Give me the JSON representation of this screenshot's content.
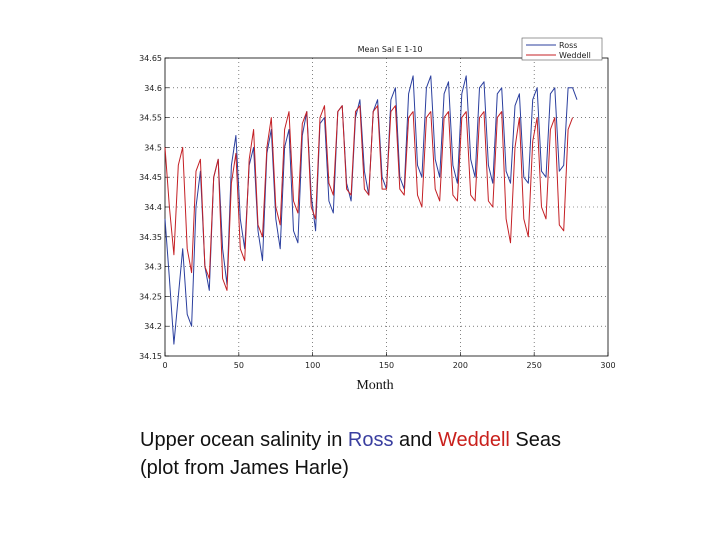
{
  "chart_data": {
    "type": "line",
    "title": "Mean Sal E 1-10",
    "xlabel": "Month",
    "ylabel": "",
    "xlim": [
      0,
      300
    ],
    "ylim": [
      34.15,
      34.65
    ],
    "x_ticks": [
      "0",
      "50",
      "100",
      "150",
      "200",
      "250",
      "300"
    ],
    "y_ticks": [
      "34.15",
      "34.2",
      "34.25",
      "34.3",
      "34.35",
      "34.4",
      "34.45",
      "34.5",
      "34.55",
      "34.6",
      "34.65"
    ],
    "grid": true,
    "legend_position": "top-right",
    "series": [
      {
        "name": "Ross",
        "color": "#2b3f9e",
        "x": [
          0,
          3,
          6,
          9,
          12,
          15,
          18,
          21,
          24,
          27,
          30,
          33,
          36,
          39,
          42,
          45,
          48,
          51,
          54,
          57,
          60,
          63,
          66,
          69,
          72,
          75,
          78,
          81,
          84,
          87,
          90,
          93,
          96,
          99,
          102,
          105,
          108,
          111,
          114,
          117,
          120,
          123,
          126,
          129,
          132,
          135,
          138,
          141,
          144,
          147,
          150,
          153,
          156,
          159,
          162,
          165,
          168,
          171,
          174,
          177,
          180,
          183,
          186,
          189,
          192,
          195,
          198,
          201,
          204,
          207,
          210,
          213,
          216,
          219,
          222,
          225,
          228,
          231,
          234,
          237,
          240,
          243,
          246,
          249,
          252,
          255,
          258,
          261,
          264,
          267,
          270,
          273,
          276,
          279
        ],
        "values": [
          34.38,
          34.28,
          34.17,
          34.25,
          34.33,
          34.22,
          34.2,
          34.4,
          34.46,
          34.3,
          34.26,
          34.45,
          34.48,
          34.33,
          34.27,
          34.47,
          34.52,
          34.38,
          34.33,
          34.47,
          34.5,
          34.36,
          34.31,
          34.49,
          34.53,
          34.38,
          34.33,
          34.5,
          34.53,
          34.36,
          34.34,
          34.52,
          34.56,
          34.42,
          34.36,
          34.54,
          34.55,
          34.41,
          34.39,
          34.56,
          34.57,
          34.44,
          34.41,
          34.55,
          34.58,
          34.46,
          34.42,
          34.56,
          34.58,
          34.45,
          34.43,
          34.58,
          34.6,
          34.45,
          34.43,
          34.59,
          34.62,
          34.47,
          34.45,
          34.6,
          34.62,
          34.48,
          34.45,
          34.59,
          34.61,
          34.47,
          34.44,
          34.59,
          34.62,
          34.48,
          34.45,
          34.6,
          34.61,
          34.47,
          34.44,
          34.59,
          34.6,
          34.46,
          34.44,
          34.57,
          34.59,
          34.45,
          34.44,
          34.58,
          34.6,
          34.46,
          34.45,
          34.59,
          34.6,
          34.46,
          34.47,
          34.6,
          34.6,
          34.58
        ]
      },
      {
        "name": "Weddell",
        "color": "#c42025",
        "x": [
          0,
          3,
          6,
          9,
          12,
          15,
          18,
          21,
          24,
          27,
          30,
          33,
          36,
          39,
          42,
          45,
          48,
          51,
          54,
          57,
          60,
          63,
          66,
          69,
          72,
          75,
          78,
          81,
          84,
          87,
          90,
          93,
          96,
          99,
          102,
          105,
          108,
          111,
          114,
          117,
          120,
          123,
          126,
          129,
          132,
          135,
          138,
          141,
          144,
          147,
          150,
          153,
          156,
          159,
          162,
          165,
          168,
          171,
          174,
          177,
          180,
          183,
          186,
          189,
          192,
          195,
          198,
          201,
          204,
          207,
          210,
          213,
          216,
          219,
          222,
          225,
          228,
          231,
          234,
          237,
          240,
          243,
          246,
          249,
          252,
          255,
          258,
          261,
          264,
          267,
          270,
          273,
          276
        ],
        "values": [
          34.5,
          34.4,
          34.32,
          34.47,
          34.5,
          34.33,
          34.29,
          34.46,
          34.48,
          34.3,
          34.28,
          34.45,
          34.48,
          34.28,
          34.26,
          34.44,
          34.49,
          34.33,
          34.31,
          34.48,
          34.53,
          34.37,
          34.35,
          34.5,
          34.55,
          34.4,
          34.37,
          34.53,
          34.56,
          34.41,
          34.39,
          34.54,
          34.56,
          34.4,
          34.38,
          34.55,
          34.57,
          34.44,
          34.42,
          34.56,
          34.57,
          34.43,
          34.42,
          34.56,
          34.57,
          34.43,
          34.42,
          34.56,
          34.57,
          34.43,
          34.43,
          34.56,
          34.57,
          34.43,
          34.42,
          34.55,
          34.56,
          34.42,
          34.4,
          34.55,
          34.56,
          34.43,
          34.41,
          34.55,
          34.56,
          34.42,
          34.41,
          34.55,
          34.56,
          34.42,
          34.41,
          34.55,
          34.56,
          34.41,
          34.4,
          34.55,
          34.56,
          34.38,
          34.34,
          34.5,
          34.55,
          34.38,
          34.35,
          34.51,
          34.55,
          34.4,
          34.38,
          34.53,
          34.55,
          34.37,
          34.36,
          34.53,
          34.55
        ]
      }
    ]
  },
  "caption": {
    "line1_prefix": "Upper ocean salinity in ",
    "line1_ross": "Ross",
    "line1_and": " and ",
    "line1_weddell": "Weddell",
    "line1_suffix": " Seas",
    "line2": "(plot from James Harle)",
    "ross_color": "#3a3fa0",
    "weddell_color": "#c9201c"
  }
}
